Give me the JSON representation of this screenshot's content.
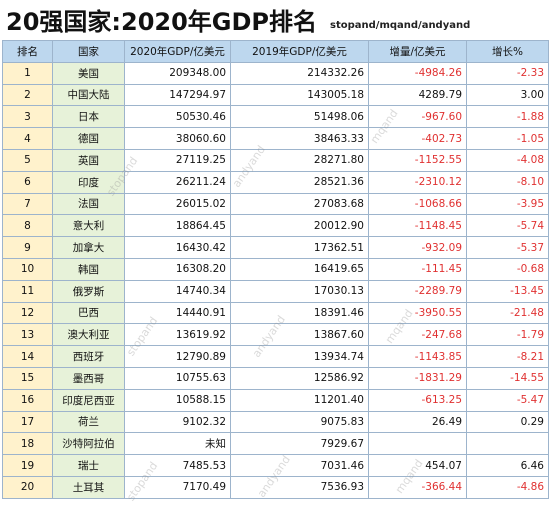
{
  "title": "20强国家:2020年GDP排名",
  "credit": "stopand/mqand/andyand",
  "headers": [
    "排名",
    "国家",
    "2020年GDP/亿美元",
    "2019年GDP/亿美元",
    "增量/亿美元",
    "增长%"
  ],
  "rows": [
    {
      "rank": "1",
      "country": "美国",
      "gdp2020": "209348.00",
      "gdp2019": "214332.26",
      "delta": "-4984.26",
      "growth": "-2.33"
    },
    {
      "rank": "2",
      "country": "中国大陆",
      "gdp2020": "147294.97",
      "gdp2019": "143005.18",
      "delta": "4289.79",
      "growth": "3.00"
    },
    {
      "rank": "3",
      "country": "日本",
      "gdp2020": "50530.46",
      "gdp2019": "51498.06",
      "delta": "-967.60",
      "growth": "-1.88"
    },
    {
      "rank": "4",
      "country": "德国",
      "gdp2020": "38060.60",
      "gdp2019": "38463.33",
      "delta": "-402.73",
      "growth": "-1.05"
    },
    {
      "rank": "5",
      "country": "英国",
      "gdp2020": "27119.25",
      "gdp2019": "28271.80",
      "delta": "-1152.55",
      "growth": "-4.08"
    },
    {
      "rank": "6",
      "country": "印度",
      "gdp2020": "26211.24",
      "gdp2019": "28521.36",
      "delta": "-2310.12",
      "growth": "-8.10"
    },
    {
      "rank": "7",
      "country": "法国",
      "gdp2020": "26015.02",
      "gdp2019": "27083.68",
      "delta": "-1068.66",
      "growth": "-3.95"
    },
    {
      "rank": "8",
      "country": "意大利",
      "gdp2020": "18864.45",
      "gdp2019": "20012.90",
      "delta": "-1148.45",
      "growth": "-5.74"
    },
    {
      "rank": "9",
      "country": "加拿大",
      "gdp2020": "16430.42",
      "gdp2019": "17362.51",
      "delta": "-932.09",
      "growth": "-5.37"
    },
    {
      "rank": "10",
      "country": "韩国",
      "gdp2020": "16308.20",
      "gdp2019": "16419.65",
      "delta": "-111.45",
      "growth": "-0.68"
    },
    {
      "rank": "11",
      "country": "俄罗斯",
      "gdp2020": "14740.34",
      "gdp2019": "17030.13",
      "delta": "-2289.79",
      "growth": "-13.45"
    },
    {
      "rank": "12",
      "country": "巴西",
      "gdp2020": "14440.91",
      "gdp2019": "18391.46",
      "delta": "-3950.55",
      "growth": "-21.48"
    },
    {
      "rank": "13",
      "country": "澳大利亚",
      "gdp2020": "13619.92",
      "gdp2019": "13867.60",
      "delta": "-247.68",
      "growth": "-1.79"
    },
    {
      "rank": "14",
      "country": "西班牙",
      "gdp2020": "12790.89",
      "gdp2019": "13934.74",
      "delta": "-1143.85",
      "growth": "-8.21"
    },
    {
      "rank": "15",
      "country": "墨西哥",
      "gdp2020": "10755.63",
      "gdp2019": "12586.92",
      "delta": "-1831.29",
      "growth": "-14.55"
    },
    {
      "rank": "16",
      "country": "印度尼西亚",
      "gdp2020": "10588.15",
      "gdp2019": "11201.40",
      "delta": "-613.25",
      "growth": "-5.47"
    },
    {
      "rank": "17",
      "country": "荷兰",
      "gdp2020": "9102.32",
      "gdp2019": "9075.83",
      "delta": "26.49",
      "growth": "0.29"
    },
    {
      "rank": "18",
      "country": "沙特阿拉伯",
      "gdp2020": "未知",
      "gdp2019": "7929.67",
      "delta": "",
      "growth": ""
    },
    {
      "rank": "19",
      "country": "瑞士",
      "gdp2020": "7485.53",
      "gdp2019": "7031.46",
      "delta": "454.07",
      "growth": "6.46"
    },
    {
      "rank": "20",
      "country": "土耳其",
      "gdp2020": "7170.49",
      "gdp2019": "7536.93",
      "delta": "-366.44",
      "growth": "-4.86"
    }
  ],
  "colors": {
    "header_bg": "#bdd7ee",
    "rank_bg": "#fff2cc",
    "country_bg": "#e7f2d9",
    "negative": "#e03131"
  }
}
